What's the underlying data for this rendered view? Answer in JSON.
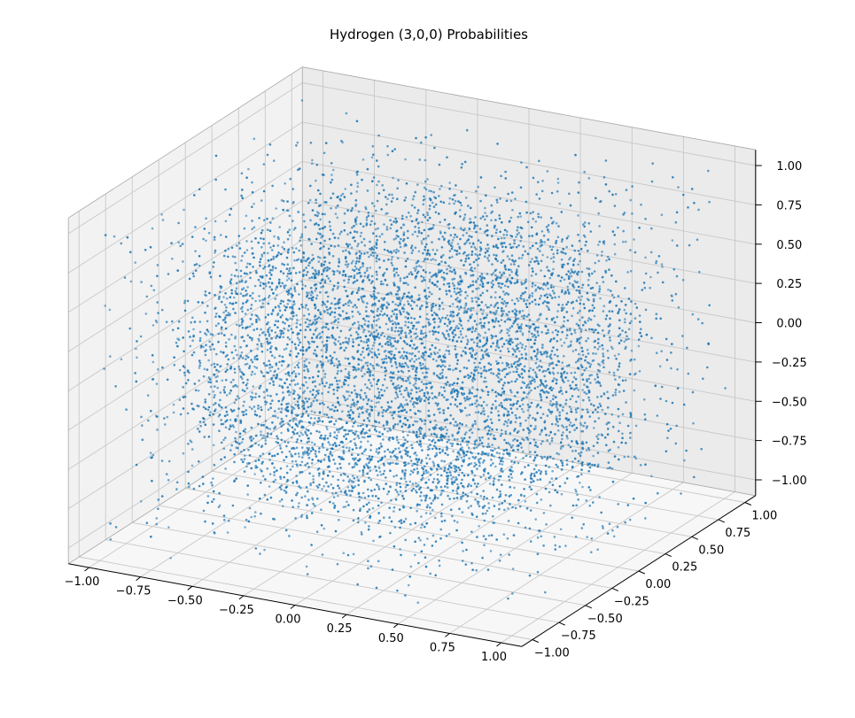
{
  "chart_data": {
    "type": "scatter",
    "projection": "3d",
    "title": "Hydrogen (3,0,0) Probabilities",
    "xlabel": "",
    "ylabel": "",
    "zlabel": "",
    "xlim": [
      -1.1,
      1.1
    ],
    "ylim": [
      -1.1,
      1.1
    ],
    "zlim": [
      -1.1,
      1.1
    ],
    "x_ticks": [
      -1.0,
      -0.75,
      -0.5,
      -0.25,
      0.0,
      0.25,
      0.5,
      0.75,
      1.0
    ],
    "x_tick_labels": [
      "−1.00",
      "−0.75",
      "−0.50",
      "−0.25",
      "0.00",
      "0.25",
      "0.50",
      "0.75",
      "1.00"
    ],
    "y_ticks": [
      -1.0,
      -0.75,
      -0.5,
      -0.25,
      0.0,
      0.25,
      0.5,
      0.75,
      1.0
    ],
    "y_tick_labels": [
      "−1.00",
      "−0.75",
      "−0.50",
      "−0.25",
      "0.00",
      "0.25",
      "0.50",
      "0.75",
      "1.00"
    ],
    "z_ticks": [
      -1.0,
      -0.75,
      -0.5,
      -0.25,
      0.0,
      0.25,
      0.5,
      0.75,
      1.0
    ],
    "z_tick_labels": [
      "−1.00",
      "−0.75",
      "−0.50",
      "−0.25",
      "0.00",
      "0.25",
      "0.50",
      "0.75",
      "1.00"
    ],
    "grid": true,
    "marker_color": "#1f77b4",
    "pane_color": "#f2f2f2",
    "grid_color": "#c8c8c8",
    "distribution": "radial 3s orbital shells on a cubic lattice, grid spacing 0.05 over [-1,1] in each axis",
    "radial_nodes": [
      0.19,
      0.71
    ]
  }
}
